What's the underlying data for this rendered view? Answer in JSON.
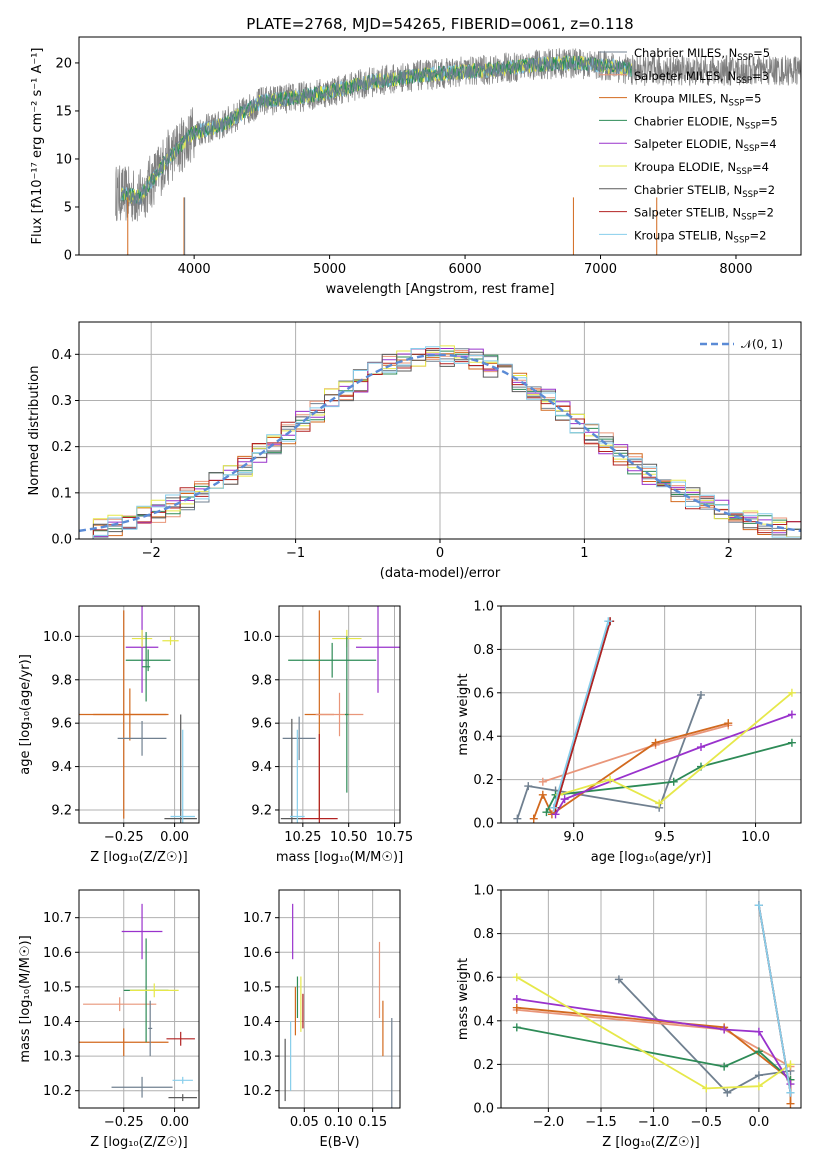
{
  "title": "PLATE=2768, MJD=54265, FIBERID=0061, z=0.118",
  "colors": [
    "#708090",
    "#e9967a",
    "#d2691e",
    "#2e8b57",
    "#9932cc",
    "#e6e84a",
    "#5a5a5a",
    "#b22222",
    "#87ceeb"
  ],
  "chart_data": [
    {
      "id": "spectrum",
      "type": "line",
      "xlabel": "wavelength [Angstrom, rest frame]",
      "ylabel": "Flux [fλ10⁻¹⁷ erg cm⁻² s⁻¹ A⁻¹]",
      "xlim": [
        3150,
        8480
      ],
      "ylim": [
        0,
        22.7
      ],
      "xticks": [
        4000,
        5000,
        6000,
        7000,
        8000
      ],
      "yticks": [
        0,
        5,
        10,
        15,
        20
      ],
      "continuum": {
        "x": [
          3420,
          3600,
          3800,
          4000,
          4200,
          4500,
          4800,
          5000,
          5300,
          5600,
          5900,
          6200,
          6500,
          6800,
          7100,
          7250
        ],
        "y": [
          6.5,
          6.0,
          10.0,
          12.8,
          13.5,
          16.0,
          16.5,
          17.0,
          18.0,
          18.6,
          19.0,
          19.3,
          19.8,
          20.0,
          19.6,
          19.2
        ]
      },
      "legend": [
        {
          "label": "Chabrier MILES, N",
          "sub": "SSP",
          "tail": "=5"
        },
        {
          "label": "Salpeter MILES, N",
          "sub": "SSP",
          "tail": "=3"
        },
        {
          "label": "Kroupa MILES, N",
          "sub": "SSP",
          "tail": "=5"
        },
        {
          "label": "Chabrier ELODIE, N",
          "sub": "SSP",
          "tail": "=5"
        },
        {
          "label": "Salpeter ELODIE, N",
          "sub": "SSP",
          "tail": "=4"
        },
        {
          "label": "Kroupa ELODIE, N",
          "sub": "SSP",
          "tail": "=4"
        },
        {
          "label": "Chabrier STELIB, N",
          "sub": "SSP",
          "tail": "=2"
        },
        {
          "label": "Salpeter STELIB, N",
          "sub": "SSP",
          "tail": "=2"
        },
        {
          "label": "Kroupa STELIB, N",
          "sub": "SSP",
          "tail": "=2"
        }
      ]
    },
    {
      "id": "residuals",
      "type": "histogram",
      "xlabel": "(data-model)/error",
      "ylabel": "Normed distribution",
      "xlim": [
        -2.5,
        2.5
      ],
      "ylim": [
        0,
        0.47
      ],
      "xticks": [
        -2,
        -1,
        0,
        1,
        2
      ],
      "yticks": [
        0.0,
        0.1,
        0.2,
        0.3,
        0.4
      ],
      "bin_width": 0.1,
      "normal_label": "𝒩(0, 1)",
      "grid": true
    },
    {
      "id": "age-vs-z",
      "type": "errorbar",
      "xlabel": "Z [log₁₀(Z/Z☉)]",
      "ylabel": "age  [log₁₀(age/yr)]",
      "xlim": [
        -0.47,
        0.12
      ],
      "ylim": [
        9.14,
        10.14
      ],
      "xticks": [
        -0.25,
        0.0
      ],
      "yticks": [
        9.2,
        9.4,
        9.6,
        9.8,
        10.0
      ],
      "xtick_labels": [
        "−0.25",
        "0.00"
      ],
      "points": [
        {
          "x": -0.25,
          "y": 9.64,
          "xerr": 0.22,
          "yerr": 0.48,
          "c": 2
        },
        {
          "x": -0.22,
          "y": 9.64,
          "xerr": 0.18,
          "yerr": 0.12,
          "c": 2
        },
        {
          "x": -0.13,
          "y": 9.89,
          "xerr": 0.11,
          "yerr": 0.05,
          "c": 3
        },
        {
          "x": -0.16,
          "y": 9.95,
          "xerr": 0.08,
          "yerr": 0.21,
          "c": 4
        },
        {
          "x": -0.16,
          "y": 9.99,
          "xerr": 0.05,
          "yerr": 0.04,
          "c": 5
        },
        {
          "x": -0.14,
          "y": 9.86,
          "xerr": 0.02,
          "yerr": 0.16,
          "c": 3
        },
        {
          "x": -0.16,
          "y": 9.53,
          "xerr": 0.12,
          "yerr": 0.08,
          "c": 0
        },
        {
          "x": 0.03,
          "y": 9.16,
          "xerr": 0.08,
          "yerr": 0.48,
          "c": 6
        },
        {
          "x": 0.04,
          "y": 9.17,
          "xerr": 0.06,
          "yerr": 0.4,
          "c": 8
        },
        {
          "x": -0.02,
          "y": 9.98,
          "xerr": 0.04,
          "yerr": 0.02,
          "c": 5
        }
      ]
    },
    {
      "id": "age-vs-mass",
      "type": "errorbar",
      "xlabel": "mass [log₁₀(M/M☉)]",
      "ylabel": "",
      "xlim": [
        10.12,
        10.78
      ],
      "ylim": [
        9.14,
        10.14
      ],
      "xticks": [
        10.25,
        10.5,
        10.75
      ],
      "yticks": [
        9.2,
        9.4,
        9.6,
        9.8,
        10.0
      ],
      "xtick_labels": [
        "10.25",
        "10.50",
        "10.75"
      ],
      "points": [
        {
          "x": 10.34,
          "y": 9.64,
          "xerr": 0.08,
          "yerr": 0.48,
          "c": 2
        },
        {
          "x": 10.45,
          "y": 9.64,
          "xerr": 0.13,
          "yerr": 0.1,
          "c": 1
        },
        {
          "x": 10.41,
          "y": 9.89,
          "xerr": 0.24,
          "yerr": 0.08,
          "c": 3
        },
        {
          "x": 10.66,
          "y": 9.95,
          "xerr": 0.12,
          "yerr": 0.21,
          "c": 4
        },
        {
          "x": 10.49,
          "y": 9.99,
          "xerr": 0.08,
          "yerr": 0.04,
          "c": 5
        },
        {
          "x": 10.49,
          "y": 9.64,
          "xerr": 0.01,
          "yerr": 0.36,
          "c": 3
        },
        {
          "x": 10.23,
          "y": 9.53,
          "xerr": 0.09,
          "yerr": 0.1,
          "c": 0
        },
        {
          "x": 10.19,
          "y": 9.16,
          "xerr": 0.06,
          "yerr": 0.46,
          "c": 6
        },
        {
          "x": 10.34,
          "y": 9.16,
          "xerr": 0.1,
          "yerr": 0.39,
          "c": 7
        },
        {
          "x": 10.22,
          "y": 9.17,
          "xerr": 0.04,
          "yerr": 0.4,
          "c": 8
        }
      ]
    },
    {
      "id": "weight-vs-age",
      "type": "line",
      "xlabel": "age  [log₁₀(age/yr)]",
      "ylabel": "mass weight",
      "xlim": [
        8.6,
        10.25
      ],
      "ylim": [
        0,
        1.0
      ],
      "xticks": [
        9.0,
        9.5,
        10.0
      ],
      "yticks": [
        0.0,
        0.2,
        0.4,
        0.6,
        0.8,
        1.0
      ],
      "series": [
        {
          "c": 0,
          "x": [
            8.69,
            8.75,
            8.9,
            9.47,
            9.7
          ],
          "y": [
            0.02,
            0.17,
            0.15,
            0.07,
            0.59
          ]
        },
        {
          "c": 1,
          "x": [
            8.83,
            9.45,
            9.85
          ],
          "y": [
            0.19,
            0.36,
            0.45
          ]
        },
        {
          "c": 2,
          "x": [
            8.78,
            8.83,
            8.88,
            9.45,
            9.85
          ],
          "y": [
            0.02,
            0.13,
            0.04,
            0.37,
            0.46
          ]
        },
        {
          "c": 3,
          "x": [
            8.85,
            8.9,
            9.55,
            9.7,
            10.2
          ],
          "y": [
            0.05,
            0.13,
            0.19,
            0.26,
            0.37
          ]
        },
        {
          "c": 4,
          "x": [
            8.9,
            8.95,
            9.7,
            10.2
          ],
          "y": [
            0.04,
            0.11,
            0.35,
            0.5
          ]
        },
        {
          "c": 5,
          "x": [
            8.92,
            9.2,
            9.47,
            10.2
          ],
          "y": [
            0.13,
            0.2,
            0.09,
            0.6
          ]
        },
        {
          "c": 6,
          "x": [
            8.9,
            9.2
          ],
          "y": [
            0.07,
            0.93
          ]
        },
        {
          "c": 7,
          "x": [
            8.9,
            9.2
          ],
          "y": [
            0.07,
            0.93
          ]
        },
        {
          "c": 8,
          "x": [
            8.89,
            9.19
          ],
          "y": [
            0.07,
            0.93
          ]
        }
      ]
    },
    {
      "id": "mass-vs-z",
      "type": "errorbar",
      "xlabel": "Z [log₁₀(Z/Z☉)]",
      "ylabel": "mass [log₁₀(M/M☉)]",
      "xlim": [
        -0.47,
        0.12
      ],
      "ylim": [
        10.15,
        10.78
      ],
      "xticks": [
        -0.25,
        0.0
      ],
      "yticks": [
        10.2,
        10.3,
        10.4,
        10.5,
        10.6,
        10.7
      ],
      "xtick_labels": [
        "−0.25",
        "0.00"
      ],
      "points": [
        {
          "x": -0.25,
          "y": 10.34,
          "xerr": 0.22,
          "yerr": 0.04,
          "c": 2
        },
        {
          "x": -0.27,
          "y": 10.45,
          "xerr": 0.18,
          "yerr": 0.02,
          "c": 1
        },
        {
          "x": -0.14,
          "y": 10.49,
          "xerr": 0.11,
          "yerr": 0.15,
          "c": 3
        },
        {
          "x": -0.16,
          "y": 10.66,
          "xerr": 0.1,
          "yerr": 0.08,
          "c": 4
        },
        {
          "x": -0.1,
          "y": 10.49,
          "xerr": 0.12,
          "yerr": 0.02,
          "c": 5
        },
        {
          "x": -0.16,
          "y": 10.21,
          "xerr": 0.15,
          "yerr": 0.03,
          "c": 0
        },
        {
          "x": -0.12,
          "y": 10.38,
          "xerr": 0.01,
          "yerr": 0.08,
          "c": 0
        },
        {
          "x": 0.03,
          "y": 10.35,
          "xerr": 0.07,
          "yerr": 0.02,
          "c": 7
        },
        {
          "x": 0.04,
          "y": 10.23,
          "xerr": 0.05,
          "yerr": 0.01,
          "c": 8
        },
        {
          "x": 0.04,
          "y": 10.18,
          "xerr": 0.07,
          "yerr": 0.01,
          "c": 6
        }
      ]
    },
    {
      "id": "mass-vs-ebv",
      "type": "errorbar",
      "xlabel": "E(B-V)",
      "ylabel": "",
      "xlim": [
        0.013,
        0.19
      ],
      "ylim": [
        10.15,
        10.78
      ],
      "xticks": [
        0.05,
        0.1,
        0.15
      ],
      "yticks": [
        10.2,
        10.3,
        10.4,
        10.5,
        10.6,
        10.7
      ],
      "xtick_labels": [
        "0.05",
        "0.10",
        "0.15"
      ],
      "points": [
        {
          "x": 0.022,
          "y": 10.26,
          "yerr": 0.09,
          "c": 6
        },
        {
          "x": 0.03,
          "y": 10.3,
          "yerr": 0.1,
          "c": 8
        },
        {
          "x": 0.033,
          "y": 10.66,
          "yerr": 0.08,
          "c": 4
        },
        {
          "x": 0.037,
          "y": 10.43,
          "yerr": 0.07,
          "c": 2
        },
        {
          "x": 0.04,
          "y": 10.47,
          "yerr": 0.06,
          "c": 3
        },
        {
          "x": 0.045,
          "y": 10.45,
          "yerr": 0.08,
          "c": 5
        },
        {
          "x": 0.048,
          "y": 10.43,
          "yerr": 0.05,
          "c": 7
        },
        {
          "x": 0.16,
          "y": 10.52,
          "yerr": 0.11,
          "c": 1
        },
        {
          "x": 0.165,
          "y": 10.38,
          "yerr": 0.08,
          "c": 2
        },
        {
          "x": 0.178,
          "y": 10.28,
          "yerr": 0.13,
          "c": 0
        }
      ]
    },
    {
      "id": "weight-vs-z",
      "type": "line",
      "xlabel": "Z [log₁₀(Z/Z☉)]",
      "ylabel": "mass weight",
      "xlim": [
        -2.45,
        0.4
      ],
      "ylim": [
        0,
        1.0
      ],
      "xticks": [
        -2.0,
        -1.5,
        -1.0,
        -0.5,
        0.0
      ],
      "yticks": [
        0.0,
        0.2,
        0.4,
        0.6,
        0.8,
        1.0
      ],
      "xtick_labels": [
        "−2.0",
        "−1.5",
        "−1.0",
        "−0.5",
        "0.0"
      ],
      "series": [
        {
          "c": 0,
          "x": [
            -1.33,
            -0.3,
            0.0,
            0.3
          ],
          "y": [
            0.59,
            0.07,
            0.15,
            0.17
          ]
        },
        {
          "c": 1,
          "x": [
            -2.3,
            -0.33,
            0.3
          ],
          "y": [
            0.45,
            0.36,
            0.19
          ]
        },
        {
          "c": 2,
          "x": [
            -2.3,
            -0.33,
            0.3,
            0.3
          ],
          "y": [
            0.46,
            0.37,
            0.13,
            0.02
          ]
        },
        {
          "c": 3,
          "x": [
            -2.3,
            -0.33,
            0.0,
            0.3
          ],
          "y": [
            0.37,
            0.19,
            0.26,
            0.13
          ]
        },
        {
          "c": 4,
          "x": [
            -2.3,
            -0.33,
            0.0,
            0.3
          ],
          "y": [
            0.5,
            0.36,
            0.35,
            0.11
          ]
        },
        {
          "c": 5,
          "x": [
            -2.3,
            -0.5,
            0.0,
            0.3
          ],
          "y": [
            0.6,
            0.09,
            0.1,
            0.2
          ]
        },
        {
          "c": 6,
          "x": [
            0.0,
            0.3
          ],
          "y": [
            0.93,
            0.07
          ]
        },
        {
          "c": 7,
          "x": [
            0.0,
            0.3
          ],
          "y": [
            0.93,
            0.07
          ]
        },
        {
          "c": 8,
          "x": [
            0.0,
            0.3
          ],
          "y": [
            0.93,
            0.07
          ]
        }
      ]
    }
  ]
}
